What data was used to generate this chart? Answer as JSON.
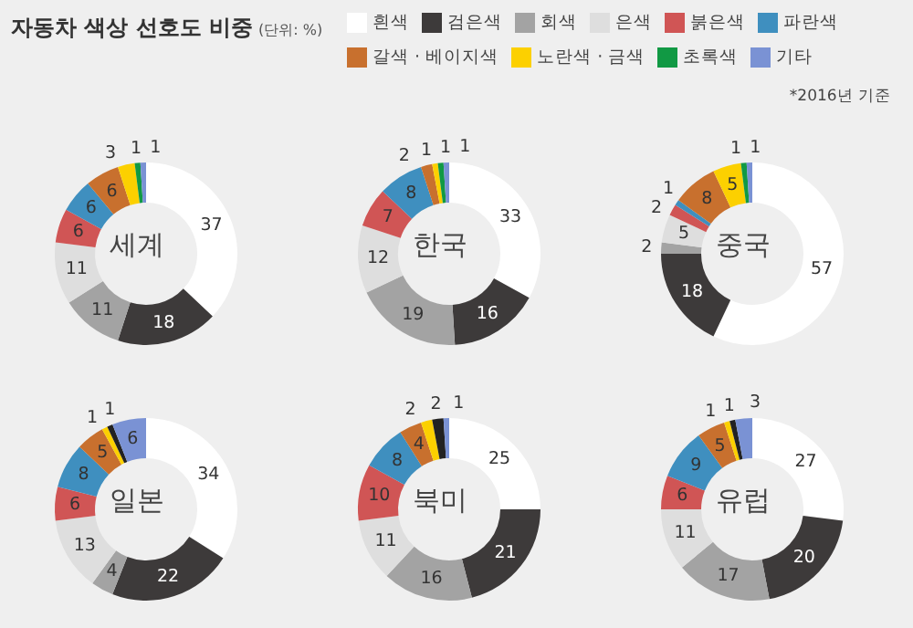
{
  "chart_data": [
    {
      "type": "other",
      "title": "자동차 색상 선호도 비중",
      "subtitle": "(단위: %)",
      "annotations": [
        "*2016년 기준"
      ]
    },
    {
      "type": "donut",
      "title": "세계",
      "legend": "top",
      "data_labels": true,
      "categories": [
        "흰색",
        "검은색",
        "회색",
        "은색",
        "붉은색",
        "파란색",
        "갈색 · 베이지색",
        "노란색 · 금색",
        "초록색",
        "기타"
      ],
      "values": [
        37,
        18,
        11,
        11,
        6,
        6,
        6,
        3,
        1,
        1
      ],
      "colors": [
        "#ffffff",
        "#3d3a3a",
        "#a3a3a3",
        "#dedede",
        "#d05555",
        "#3f8fbf",
        "#c8702e",
        "#fcd000",
        "#119944",
        "#7a92d4"
      ]
    },
    {
      "type": "donut",
      "title": "한국",
      "data_labels": true,
      "categories": [
        null,
        null,
        null,
        null,
        null,
        null,
        null,
        null,
        null,
        null
      ],
      "values": [
        33,
        16,
        19,
        12,
        7,
        8,
        2,
        1,
        1,
        1
      ],
      "colors": [
        "#ffffff",
        "#3d3a3a",
        "#a3a3a3",
        "#dedede",
        "#d05555",
        "#3f8fbf",
        "#c8702e",
        "#fcd000",
        "#119944",
        "#7a92d4"
      ]
    },
    {
      "type": "donut",
      "title": "중국",
      "data_labels": true,
      "categories": [
        null,
        null,
        null,
        null,
        null,
        null,
        null,
        null,
        null,
        null
      ],
      "values": [
        57,
        18,
        2,
        5,
        2,
        1,
        8,
        5,
        1,
        1
      ],
      "colors": [
        "#ffffff",
        "#3d3a3a",
        "#a3a3a3",
        "#dedede",
        "#d05555",
        "#3f8fbf",
        "#c8702e",
        "#fcd000",
        "#119944",
        "#7a92d4"
      ]
    },
    {
      "type": "donut",
      "title": "일본",
      "data_labels": true,
      "categories": [
        null,
        null,
        null,
        null,
        null,
        null,
        null,
        null,
        null,
        null
      ],
      "values": [
        34,
        22,
        4,
        13,
        6,
        8,
        5,
        1,
        1,
        6
      ],
      "colors": [
        "#ffffff",
        "#3d3a3a",
        "#a3a3a3",
        "#dedede",
        "#d05555",
        "#3f8fbf",
        "#c8702e",
        "#fcd000",
        "#222222",
        "#7a92d4"
      ]
    },
    {
      "type": "donut",
      "title": "북미",
      "data_labels": true,
      "categories": [
        null,
        null,
        null,
        null,
        null,
        null,
        null,
        null,
        null,
        null
      ],
      "values": [
        25,
        21,
        16,
        11,
        10,
        8,
        4,
        2,
        2,
        1
      ],
      "colors": [
        "#ffffff",
        "#3d3a3a",
        "#a3a3a3",
        "#dedede",
        "#d05555",
        "#3f8fbf",
        "#c8702e",
        "#fcd000",
        "#222222",
        "#7a92d4"
      ]
    },
    {
      "type": "donut",
      "title": "유럽",
      "data_labels": true,
      "categories": [
        null,
        null,
        null,
        null,
        null,
        null,
        null,
        null,
        null,
        null
      ],
      "values": [
        27,
        20,
        17,
        11,
        6,
        9,
        5,
        1,
        1,
        3
      ],
      "colors": [
        "#ffffff",
        "#3d3a3a",
        "#a3a3a3",
        "#dedede",
        "#d05555",
        "#3f8fbf",
        "#c8702e",
        "#fcd000",
        "#222222",
        "#7a92d4"
      ]
    }
  ]
}
